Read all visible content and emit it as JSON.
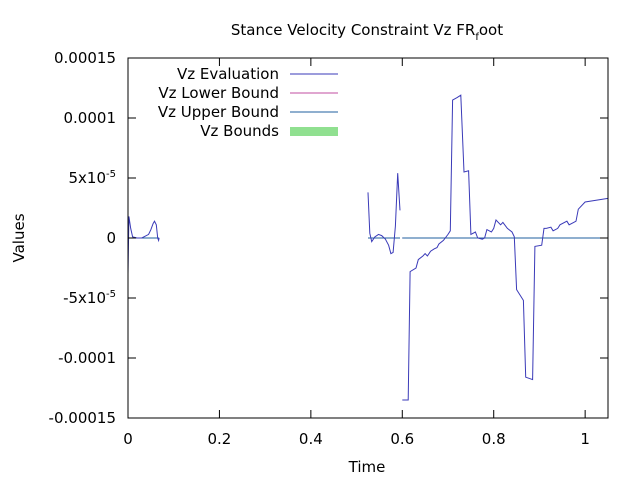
{
  "chart_data": {
    "type": "line",
    "title": "Stance Velocity Constraint Vz FR",
    "title_subscript": "f",
    "title_suffix": "oot",
    "xlabel": "Time",
    "ylabel": "Values",
    "xlim": [
      0,
      1.05
    ],
    "ylim": [
      -0.00015,
      0.00015
    ],
    "x_ticks": [
      0,
      0.2,
      0.4,
      0.6,
      0.8,
      1
    ],
    "x_tick_labels": [
      "0",
      "0.2",
      "0.4",
      "0.6",
      "0.8",
      "1"
    ],
    "y_ticks": [
      0.00015,
      0.0001,
      5e-05,
      0,
      -5e-05,
      -0.0001,
      -0.00015
    ],
    "y_tick_labels": [
      {
        "base": "0.00015",
        "exp": ""
      },
      {
        "base": "0.0001",
        "exp": ""
      },
      {
        "base": "5x10",
        "exp": "-5"
      },
      {
        "base": "0",
        "exp": ""
      },
      {
        "base": "-5x10",
        "exp": "-5"
      },
      {
        "base": "-0.0001",
        "exp": ""
      },
      {
        "base": "-0.00015",
        "exp": ""
      }
    ],
    "grid": false,
    "legend_position": "top-left",
    "series": [
      {
        "name": "Vz Evaluation",
        "color": "#3a3ab8",
        "segments": [
          [
            [
              0,
              -3e-05
            ],
            [
              0.002,
              1.8e-05
            ],
            [
              0.006,
              8e-06
            ],
            [
              0.01,
              1e-06
            ],
            [
              0.02,
              0
            ],
            [
              0.03,
              0
            ],
            [
              0.035,
              1e-06
            ],
            [
              0.045,
              3e-06
            ],
            [
              0.05,
              7e-06
            ],
            [
              0.055,
              1.2e-05
            ],
            [
              0.058,
              1.4e-05
            ],
            [
              0.062,
              1.1e-05
            ],
            [
              0.065,
              0
            ],
            [
              0.067,
              -2e-06
            ],
            [
              0.068,
              0
            ]
          ],
          [
            [
              0.525,
              3.8e-05
            ],
            [
              0.529,
              4e-06
            ],
            [
              0.533,
              -3e-06
            ],
            [
              0.54,
              1e-06
            ],
            [
              0.548,
              3e-06
            ],
            [
              0.555,
              2e-06
            ],
            [
              0.563,
              -1e-06
            ],
            [
              0.57,
              -6e-06
            ],
            [
              0.575,
              -1.3e-05
            ],
            [
              0.58,
              -1.2e-05
            ],
            [
              0.585,
              1e-05
            ],
            [
              0.59,
              5.4e-05
            ],
            [
              0.595,
              2.3e-05
            ]
          ],
          [
            [
              0.6,
              -0.000135
            ],
            [
              0.613,
              -0.000135
            ],
            [
              0.617,
              -2.8e-05
            ],
            [
              0.63,
              -2.5e-05
            ],
            [
              0.635,
              -1.8e-05
            ],
            [
              0.645,
              -1.5e-05
            ],
            [
              0.65,
              -1.3e-05
            ],
            [
              0.655,
              -1.5e-05
            ],
            [
              0.662,
              -1.1e-05
            ],
            [
              0.67,
              -9e-06
            ],
            [
              0.676,
              -8e-06
            ],
            [
              0.68,
              -5e-06
            ],
            [
              0.69,
              -2e-06
            ],
            [
              0.7,
              3e-06
            ],
            [
              0.705,
              6e-06
            ],
            [
              0.71,
              0.000115
            ],
            [
              0.72,
              0.000117
            ],
            [
              0.728,
              0.000119
            ],
            [
              0.735,
              5.5e-05
            ],
            [
              0.745,
              5.6e-05
            ],
            [
              0.75,
              3e-06
            ],
            [
              0.76,
              5e-06
            ],
            [
              0.765,
              0
            ],
            [
              0.775,
              -1e-06
            ],
            [
              0.78,
              0
            ],
            [
              0.785,
              7e-06
            ],
            [
              0.795,
              5e-06
            ],
            [
              0.8,
              8e-06
            ],
            [
              0.805,
              1.5e-05
            ],
            [
              0.815,
              1.1e-05
            ],
            [
              0.82,
              1.3e-05
            ],
            [
              0.83,
              8e-06
            ],
            [
              0.84,
              5e-06
            ],
            [
              0.845,
              1e-06
            ],
            [
              0.85,
              -4.3e-05
            ],
            [
              0.865,
              -5.2e-05
            ],
            [
              0.87,
              -0.000116
            ],
            [
              0.885,
              -0.000118
            ],
            [
              0.89,
              -7e-06
            ],
            [
              0.905,
              -6e-06
            ],
            [
              0.91,
              8e-06
            ],
            [
              0.915,
              8e-06
            ],
            [
              0.925,
              9e-06
            ],
            [
              0.93,
              6e-06
            ],
            [
              0.94,
              8e-06
            ],
            [
              0.945,
              1.1e-05
            ],
            [
              0.96,
              1.4e-05
            ],
            [
              0.965,
              1.1e-05
            ],
            [
              0.975,
              1.3e-05
            ],
            [
              0.98,
              1.4e-05
            ],
            [
              0.985,
              2.4e-05
            ],
            [
              1,
              3e-05
            ],
            [
              1.05,
              3.3e-05
            ]
          ]
        ]
      },
      {
        "name": "Vz Lower Bound",
        "color": "#c04ca0",
        "segments": [
          [
            [
              0,
              0
            ],
            [
              0.068,
              0
            ]
          ],
          [
            [
              0.525,
              0
            ],
            [
              0.595,
              0
            ]
          ],
          [
            [
              0.6,
              0
            ],
            [
              1.05,
              0
            ]
          ]
        ]
      },
      {
        "name": "Vz Upper Bound",
        "color": "#1f5f9f",
        "segments": [
          [
            [
              0,
              0
            ],
            [
              0.068,
              0
            ]
          ],
          [
            [
              0.525,
              0
            ],
            [
              0.595,
              0
            ]
          ],
          [
            [
              0.6,
              0
            ],
            [
              1.05,
              0
            ]
          ]
        ]
      },
      {
        "name": "Vz Bounds",
        "color": "#90e090",
        "segments": []
      }
    ]
  }
}
